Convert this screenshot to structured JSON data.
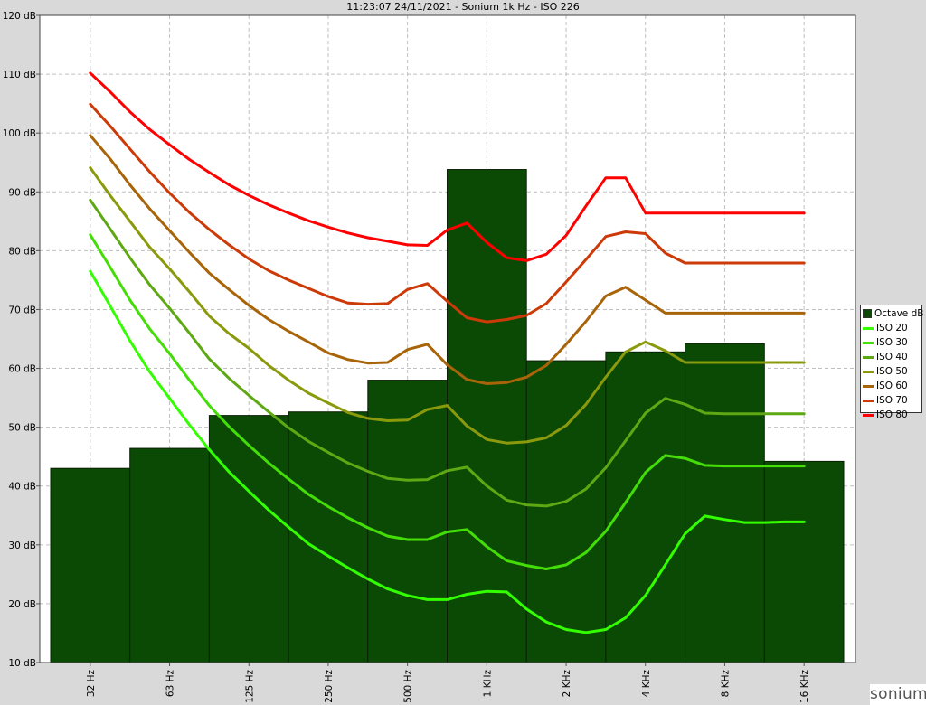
{
  "title": "11:23:07 24/11/2021 - Sonium 1k Hz - ISO 226",
  "brand": "sonium",
  "colors": {
    "background": "#d9d9d9",
    "plot_background": "#ffffff",
    "bar_fill": "#0b4a04",
    "grid": "#c0c0c0"
  },
  "chart_data": {
    "type": "bar",
    "title": "11:23:07 24/11/2021 - Sonium 1k Hz - ISO 226",
    "categories": [
      "32 Hz",
      "63 Hz",
      "125 Hz",
      "250 Hz",
      "500 Hz",
      "1 KHz",
      "2 KHz",
      "4 KHz",
      "8 KHz",
      "16 KHz"
    ],
    "y_ticks": [
      "10 dB",
      "20 dB",
      "30 dB",
      "40 dB",
      "50 dB",
      "60 dB",
      "70 dB",
      "80 dB",
      "90 dB",
      "100 dB",
      "110 dB",
      "120 dB"
    ],
    "ylim": [
      10,
      120
    ],
    "grid": true,
    "legend_position": "right",
    "bars": {
      "name": "Octave dB",
      "color": "#0b4a04",
      "values": [
        43,
        46.4,
        52,
        52.6,
        58,
        93.8,
        61.3,
        62.8,
        64.2,
        44.2
      ]
    },
    "series": [
      {
        "name": "ISO 20",
        "color": "#33ff00",
        "x": [
          0,
          0.25,
          0.5,
          0.75,
          1,
          1.25,
          1.5,
          1.75,
          2,
          2.25,
          2.5,
          2.75,
          3,
          3.25,
          3.5,
          3.75,
          4,
          4.25,
          4.5,
          4.75,
          5,
          5.25,
          5.5,
          5.75,
          6,
          6.25,
          6.5,
          6.75,
          7,
          7.25,
          7.5,
          7.75,
          8,
          8.25,
          8.5,
          8.75,
          9
        ],
        "values": [
          76.5,
          70.6,
          64.7,
          59.4,
          54.9,
          50.4,
          46.2,
          42.4,
          39.1,
          35.9,
          33.0,
          30.2,
          28.1,
          26.1,
          24.2,
          22.5,
          21.4,
          20.7,
          20.7,
          21.6,
          22.1,
          22.0,
          19.1,
          16.9,
          15.6,
          15.1,
          15.6,
          17.6,
          21.4,
          26.6,
          31.9,
          34.9,
          34.3,
          33.8,
          33.8,
          33.9,
          33.9
        ]
      },
      {
        "name": "ISO 30",
        "color": "#44dd08",
        "x": [
          0,
          0.25,
          0.5,
          0.75,
          1,
          1.25,
          1.5,
          1.75,
          2,
          2.25,
          2.5,
          2.75,
          3,
          3.25,
          3.5,
          3.75,
          4,
          4.25,
          4.5,
          4.75,
          5,
          5.25,
          5.5,
          5.75,
          6,
          6.25,
          6.5,
          6.75,
          7,
          7.25,
          7.5,
          7.75,
          8,
          8.25,
          8.5,
          8.75,
          9
        ],
        "values": [
          82.7,
          77.2,
          71.6,
          66.7,
          62.5,
          58.0,
          53.7,
          50.1,
          46.9,
          43.9,
          41.2,
          38.6,
          36.5,
          34.6,
          32.9,
          31.5,
          30.9,
          30.9,
          32.2,
          32.6,
          29.7,
          27.3,
          26.5,
          25.9,
          26.6,
          28.7,
          32.3,
          37.2,
          42.3,
          45.2,
          44.7,
          43.5,
          43.4,
          43.4,
          43.4,
          43.4,
          43.4
        ]
      },
      {
        "name": "ISO 40",
        "color": "#5ea814",
        "x": [
          0,
          0.25,
          0.5,
          0.75,
          1,
          1.25,
          1.5,
          1.75,
          2,
          2.25,
          2.5,
          2.75,
          3,
          3.25,
          3.5,
          3.75,
          4,
          4.25,
          4.5,
          4.75,
          5,
          5.25,
          5.5,
          5.75,
          6,
          6.25,
          6.5,
          6.75,
          7,
          7.25,
          7.5,
          7.75,
          8,
          8.25,
          8.5,
          8.75,
          9
        ],
        "values": [
          88.6,
          83.7,
          78.8,
          74.2,
          70.2,
          66.0,
          61.6,
          58.3,
          55.4,
          52.6,
          49.9,
          47.6,
          45.7,
          43.9,
          42.5,
          41.3,
          41.0,
          41.1,
          42.6,
          43.2,
          40.0,
          37.6,
          36.8,
          36.6,
          37.4,
          39.5,
          43.1,
          47.7,
          52.4,
          54.9,
          53.9,
          52.4,
          52.3,
          52.3,
          52.3,
          52.3,
          52.3
        ]
      },
      {
        "name": "ISO 50",
        "color": "#8a9a0c",
        "x": [
          0,
          0.25,
          0.5,
          0.75,
          1,
          1.25,
          1.5,
          1.75,
          2,
          2.25,
          2.5,
          2.75,
          3,
          3.25,
          3.5,
          3.75,
          4,
          4.25,
          4.5,
          4.75,
          5,
          5.25,
          5.5,
          5.75,
          6,
          6.25,
          6.5,
          6.75,
          7,
          7.25,
          7.5,
          7.75,
          8,
          8.25,
          8.5,
          8.75,
          9
        ],
        "values": [
          94.1,
          89.4,
          85.0,
          80.6,
          76.9,
          73.0,
          68.9,
          65.9,
          63.4,
          60.5,
          58.0,
          55.8,
          54.1,
          52.5,
          51.5,
          51.1,
          51.2,
          53.0,
          53.7,
          50.2,
          47.9,
          47.3,
          47.5,
          48.2,
          50.3,
          53.9,
          58.5,
          62.8,
          64.5,
          63.0,
          61.0,
          61.0,
          61.0,
          61.0,
          61.0,
          61.0,
          61.0
        ]
      },
      {
        "name": "ISO 60",
        "color": "#a86408",
        "x": [
          0,
          0.25,
          0.5,
          0.75,
          1,
          1.25,
          1.5,
          1.75,
          2,
          2.25,
          2.5,
          2.75,
          3,
          3.25,
          3.5,
          3.75,
          4,
          4.25,
          4.5,
          4.75,
          5,
          5.25,
          5.5,
          5.75,
          6,
          6.25,
          6.5,
          6.75,
          7,
          7.25,
          7.5,
          7.75,
          8,
          8.25,
          8.5,
          8.75,
          9
        ],
        "values": [
          99.6,
          95.6,
          91.2,
          87.1,
          83.4,
          79.7,
          76.2,
          73.4,
          70.7,
          68.3,
          66.3,
          64.5,
          62.6,
          61.5,
          60.9,
          61.0,
          63.2,
          64.1,
          60.6,
          58.1,
          57.4,
          57.6,
          58.5,
          60.5,
          64.1,
          68.0,
          72.3,
          73.8,
          71.6,
          69.4,
          69.4,
          69.4,
          69.4,
          69.4,
          69.4,
          69.4,
          69.4
        ]
      },
      {
        "name": "ISO 70",
        "color": "#cc3a08",
        "x": [
          0,
          0.25,
          0.5,
          0.75,
          1,
          1.25,
          1.5,
          1.75,
          2,
          2.25,
          2.5,
          2.75,
          3,
          3.25,
          3.5,
          3.75,
          4,
          4.25,
          4.5,
          4.75,
          5,
          5.25,
          5.5,
          5.75,
          6,
          6.25,
          6.5,
          6.75,
          7,
          7.25,
          7.5,
          7.75,
          8,
          8.25,
          8.5,
          8.75,
          9
        ],
        "values": [
          104.9,
          101.2,
          97.3,
          93.4,
          89.8,
          86.5,
          83.6,
          81.0,
          78.6,
          76.6,
          75.0,
          73.6,
          72.2,
          71.1,
          70.9,
          71.0,
          73.4,
          74.4,
          71.4,
          68.6,
          67.9,
          68.3,
          69.0,
          71.0,
          74.7,
          78.5,
          82.4,
          83.2,
          82.9,
          79.6,
          77.9,
          77.9,
          77.9,
          77.9,
          77.9,
          77.9,
          77.9
        ]
      },
      {
        "name": "ISO 80",
        "color": "#ff0000",
        "x": [
          0,
          0.25,
          0.5,
          0.75,
          1,
          1.25,
          1.5,
          1.75,
          2,
          2.25,
          2.5,
          2.75,
          3,
          3.25,
          3.5,
          3.75,
          4,
          4.25,
          4.5,
          4.75,
          5,
          5.25,
          5.5,
          5.75,
          6,
          6.25,
          6.5,
          6.75,
          7,
          7.25,
          7.5,
          7.75,
          8,
          8.25,
          8.5,
          8.75,
          9
        ],
        "values": [
          110.2,
          107.0,
          103.6,
          100.6,
          98.0,
          95.5,
          93.3,
          91.2,
          89.4,
          87.8,
          86.4,
          85.1,
          84.0,
          83.0,
          82.2,
          81.6,
          81.0,
          80.9,
          83.5,
          84.7,
          81.4,
          78.8,
          78.3,
          79.4,
          82.6,
          87.6,
          92.4,
          92.4,
          86.4,
          86.4,
          86.4,
          86.4,
          86.4,
          86.4,
          86.4,
          86.4,
          86.4
        ]
      }
    ]
  }
}
